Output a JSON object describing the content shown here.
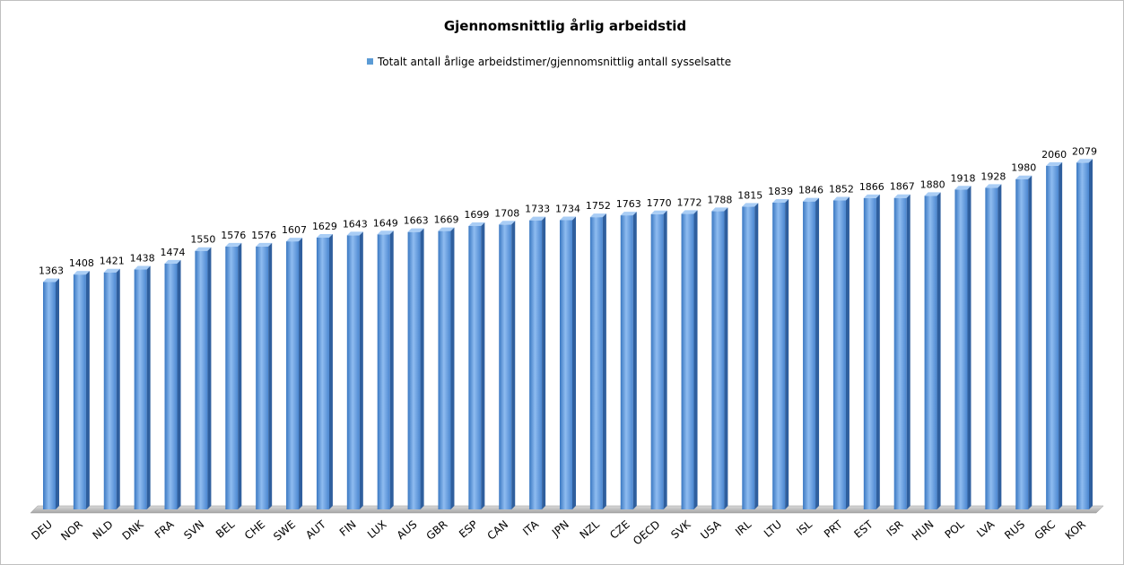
{
  "chart_data": {
    "type": "bar",
    "title": "Gjennomsnittlig årlig arbeidstid",
    "series": [
      {
        "name": "Totalt antall årlige arbeidstimer/gjennomsnittlig antall sysselsatte",
        "color": "#5b9bd5",
        "values": [
          1363,
          1408,
          1421,
          1438,
          1474,
          1550,
          1576,
          1576,
          1607,
          1629,
          1643,
          1649,
          1663,
          1669,
          1699,
          1708,
          1733,
          1734,
          1752,
          1763,
          1770,
          1772,
          1788,
          1815,
          1839,
          1846,
          1852,
          1866,
          1867,
          1880,
          1918,
          1928,
          1980,
          2060,
          2079
        ]
      }
    ],
    "categories": [
      "DEU",
      "NOR",
      "NLD",
      "DNK",
      "FRA",
      "SVN",
      "BEL",
      "CHE",
      "SWE",
      "AUT",
      "FIN",
      "LUX",
      "AUS",
      "GBR",
      "ESP",
      "CAN",
      "ITA",
      "JPN",
      "NZL",
      "CZE",
      "OECD",
      "SVK",
      "USA",
      "IRL",
      "LTU",
      "ISL",
      "PRT",
      "EST",
      "ISR",
      "HUN",
      "POL",
      "LVA",
      "RUS",
      "GRC",
      "KOR"
    ],
    "ylim": [
      0,
      2500
    ]
  }
}
